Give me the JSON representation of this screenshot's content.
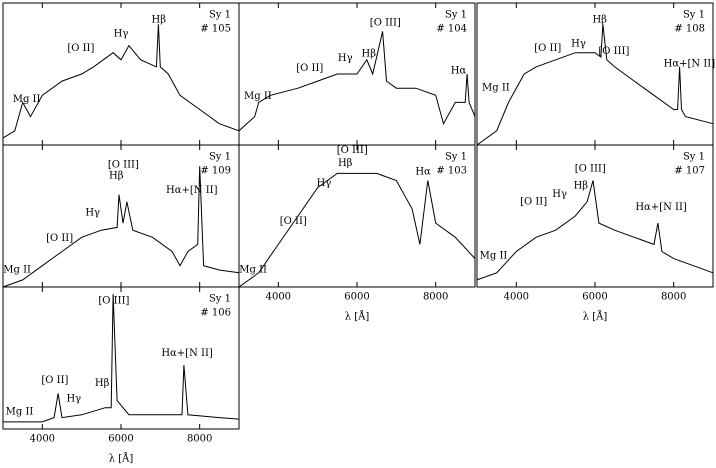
{
  "chart_data": [
    {
      "type": "line",
      "title": "Sy 1",
      "subtitle": "# 105",
      "annotations": [
        "Mg II",
        "[O II]",
        "Hγ",
        "Hβ"
      ],
      "x": [
        3000,
        3300,
        3500,
        3700,
        4000,
        4500,
        5000,
        5300,
        5800,
        6000,
        6200,
        6500,
        6900,
        6950,
        7000,
        7200,
        7500,
        8000,
        8500,
        9000
      ],
      "values": [
        0.05,
        0.1,
        0.3,
        0.2,
        0.35,
        0.45,
        0.5,
        0.55,
        0.65,
        0.6,
        0.7,
        0.6,
        0.55,
        0.85,
        0.55,
        0.5,
        0.35,
        0.25,
        0.15,
        0.1
      ],
      "color": "#000000",
      "xlim": [
        3000,
        9000
      ],
      "ylim": [
        0,
        1
      ],
      "xticks": [
        4000,
        6000,
        8000
      ]
    },
    {
      "type": "line",
      "title": "Sy 1",
      "subtitle": "# 104",
      "annotations": [
        "Mg II",
        "[O II]",
        "Hγ",
        "Hβ",
        "[O III]",
        "Hα"
      ],
      "x": [
        3000,
        3400,
        3500,
        3800,
        4500,
        5000,
        5500,
        6000,
        6250,
        6400,
        6650,
        6750,
        7000,
        7500,
        8000,
        8200,
        8500,
        8750,
        8800,
        8850,
        9000
      ],
      "values": [
        0.1,
        0.2,
        0.3,
        0.35,
        0.4,
        0.45,
        0.5,
        0.5,
        0.6,
        0.5,
        0.8,
        0.45,
        0.4,
        0.4,
        0.35,
        0.15,
        0.3,
        0.3,
        0.5,
        0.3,
        0.2
      ],
      "color": "#000000",
      "xlim": [
        3000,
        9000
      ],
      "ylim": [
        0,
        1
      ],
      "xticks": [
        4000,
        6000,
        8000
      ]
    },
    {
      "type": "line",
      "title": "Sy 1",
      "subtitle": "# 108",
      "annotations": [
        "Mg II",
        "[O II]",
        "Hγ",
        "Hβ",
        "[O III]",
        "Hα+[N II]"
      ],
      "x": [
        3000,
        3500,
        3800,
        4200,
        4500,
        5000,
        5500,
        6000,
        6150,
        6200,
        6300,
        6500,
        7000,
        7500,
        8000,
        8100,
        8150,
        8200,
        8300,
        9000
      ],
      "values": [
        0.0,
        0.1,
        0.3,
        0.5,
        0.55,
        0.6,
        0.65,
        0.65,
        0.62,
        0.85,
        0.6,
        0.55,
        0.45,
        0.35,
        0.25,
        0.25,
        0.55,
        0.25,
        0.2,
        0.15
      ],
      "color": "#000000",
      "xlim": [
        3000,
        9000
      ],
      "ylim": [
        0,
        1
      ],
      "xticks": [
        4000,
        6000,
        8000
      ]
    },
    {
      "type": "line",
      "title": "Sy 1",
      "subtitle": "# 109",
      "annotations": [
        "Mg II",
        "[O II]",
        "Hγ",
        "Hβ",
        "[O III]",
        "Hα+[N II]"
      ],
      "x": [
        3000,
        3500,
        4000,
        4500,
        5000,
        5500,
        5900,
        5950,
        6050,
        6150,
        6300,
        6800,
        7300,
        7500,
        7700,
        7950,
        8000,
        8100,
        8500,
        9000
      ],
      "values": [
        0.0,
        0.05,
        0.15,
        0.25,
        0.35,
        0.4,
        0.42,
        0.65,
        0.45,
        0.6,
        0.4,
        0.35,
        0.25,
        0.15,
        0.25,
        0.3,
        0.85,
        0.15,
        0.12,
        0.1
      ],
      "color": "#000000",
      "xlim": [
        3000,
        9000
      ],
      "ylim": [
        0,
        1
      ],
      "xticks": [
        4000,
        6000,
        8000
      ]
    },
    {
      "type": "line",
      "title": "Sy 1",
      "subtitle": "# 103",
      "annotations": [
        "Mg II",
        "[O II]",
        "Hγ",
        "Hβ",
        "[O III]",
        "Hα"
      ],
      "x": [
        3000,
        3500,
        4000,
        4500,
        5000,
        5500,
        6000,
        6500,
        7000,
        7400,
        7600,
        7800,
        8000,
        8500,
        9000
      ],
      "values": [
        0.0,
        0.1,
        0.3,
        0.5,
        0.7,
        0.8,
        0.8,
        0.8,
        0.75,
        0.55,
        0.3,
        0.75,
        0.45,
        0.35,
        0.2
      ],
      "color": "#000000",
      "xlim": [
        3000,
        9000
      ],
      "ylim": [
        0,
        1
      ],
      "xticks": [
        4000,
        6000,
        8000
      ],
      "xlabel": "λ [Å]"
    },
    {
      "type": "line",
      "title": "Sy 1",
      "subtitle": "# 107",
      "annotations": [
        "Mg II",
        "[O II]",
        "Hγ",
        "Hβ",
        "[O III]",
        "Hα+[N II]"
      ],
      "x": [
        3000,
        3500,
        4000,
        4500,
        5000,
        5500,
        5800,
        5950,
        6100,
        6500,
        7000,
        7500,
        7600,
        7700,
        8000,
        8500,
        9000
      ],
      "values": [
        0.05,
        0.1,
        0.25,
        0.35,
        0.4,
        0.5,
        0.6,
        0.75,
        0.45,
        0.4,
        0.35,
        0.3,
        0.45,
        0.25,
        0.2,
        0.15,
        0.1
      ],
      "color": "#000000",
      "xlim": [
        3000,
        9000
      ],
      "ylim": [
        0,
        1
      ],
      "xticks": [
        4000,
        6000,
        8000
      ],
      "xlabel": "λ [Å]"
    },
    {
      "type": "line",
      "title": "Sy 1",
      "subtitle": "# 106",
      "annotations": [
        "Mg II",
        "[O II]",
        "Hγ",
        "Hβ",
        "[O III]",
        "Hα+[N II]"
      ],
      "x": [
        3000,
        4000,
        4300,
        4400,
        4500,
        5000,
        5600,
        5750,
        5800,
        5900,
        6200,
        7000,
        7550,
        7600,
        7700,
        8500,
        9000
      ],
      "values": [
        0.05,
        0.05,
        0.08,
        0.25,
        0.08,
        0.1,
        0.15,
        0.15,
        0.95,
        0.2,
        0.1,
        0.1,
        0.1,
        0.45,
        0.1,
        0.08,
        0.07
      ],
      "color": "#000000",
      "xlim": [
        3000,
        9000
      ],
      "ylim": [
        0,
        1
      ],
      "xticks": [
        4000,
        6000,
        8000
      ],
      "xlabel": "λ [Å]"
    }
  ]
}
